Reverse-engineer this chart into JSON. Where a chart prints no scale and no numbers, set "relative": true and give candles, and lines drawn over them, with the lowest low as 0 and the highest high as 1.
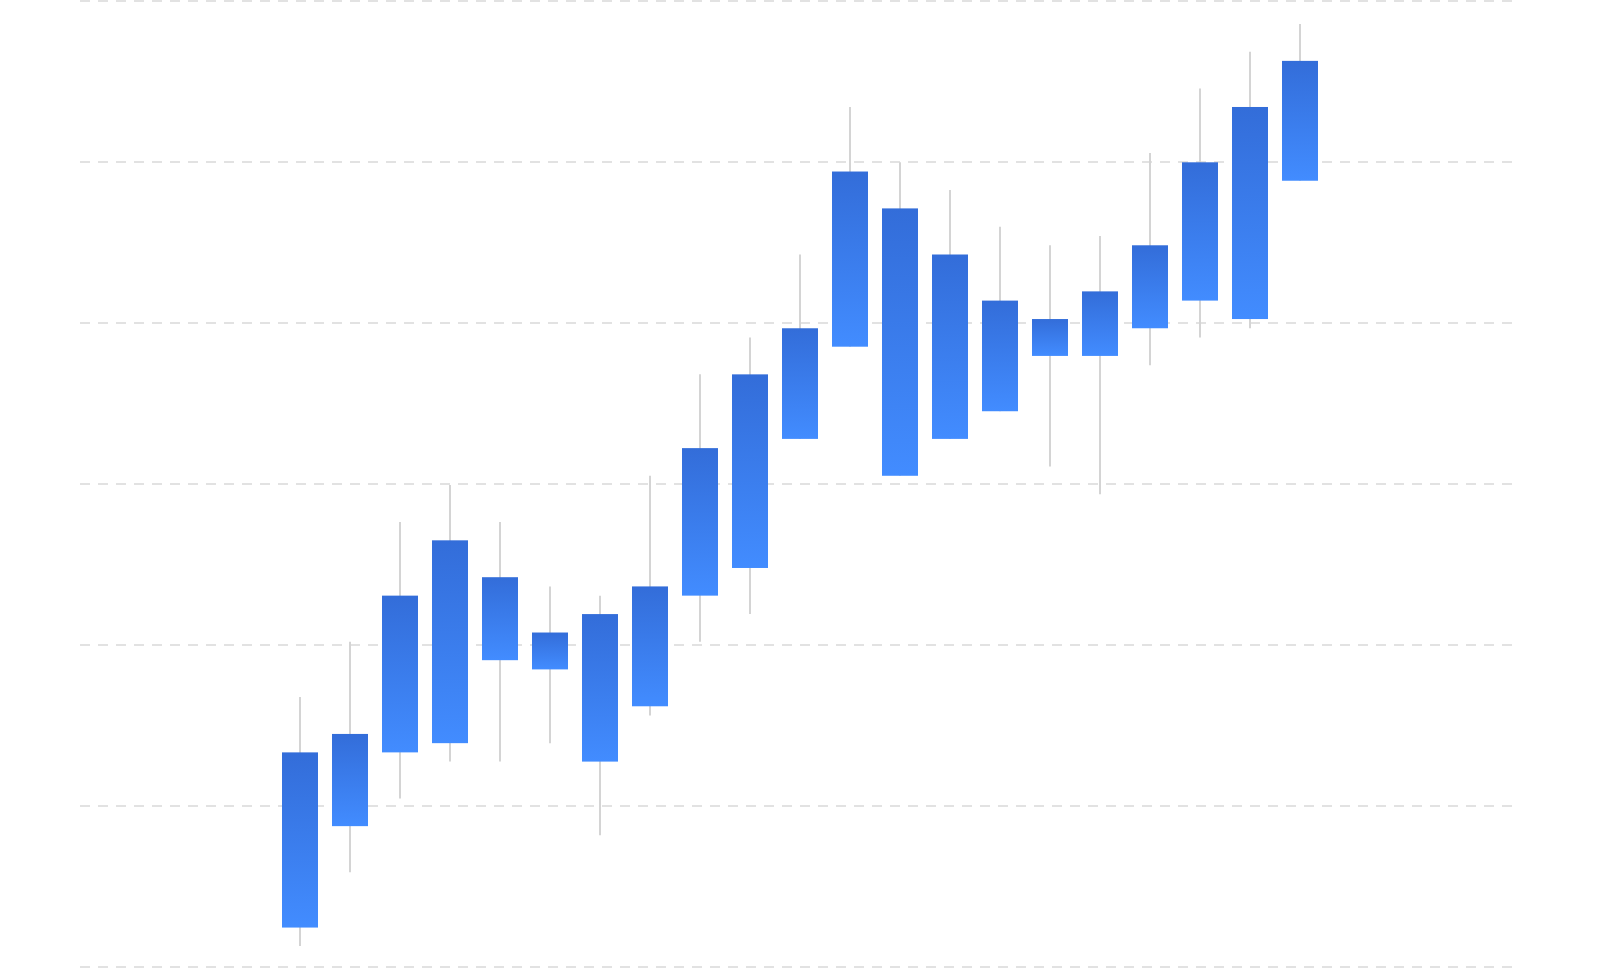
{
  "chart_data": {
    "type": "candlestick",
    "relative": true,
    "grid": "y",
    "color": "#3a7cf6",
    "categories": [
      null,
      null,
      null,
      null,
      null,
      null,
      null,
      null,
      null,
      null,
      null,
      null,
      null,
      null,
      null,
      null,
      null,
      null,
      null,
      null,
      null
    ],
    "ohlc": [
      [
        0.02,
        0.27,
        0,
        0.21
      ],
      [
        0.13,
        0.33,
        0.08,
        0.23
      ],
      [
        0.21,
        0.46,
        0.16,
        0.38
      ],
      [
        0.22,
        0.5,
        0.2,
        0.44
      ],
      [
        0.31,
        0.46,
        0.2,
        0.4
      ],
      [
        0.3,
        0.39,
        0.22,
        0.34
      ],
      [
        0.2,
        0.38,
        0.12,
        0.36
      ],
      [
        0.26,
        0.51,
        0.25,
        0.39
      ],
      [
        0.38,
        0.62,
        0.33,
        0.54
      ],
      [
        0.41,
        0.66,
        0.36,
        0.62
      ],
      [
        0.55,
        0.75,
        0.55,
        0.67
      ],
      [
        0.65,
        0.91,
        0.65,
        0.84
      ],
      [
        0.51,
        0.85,
        0.51,
        0.8
      ],
      [
        0.55,
        0.82,
        0.55,
        0.75
      ],
      [
        0.58,
        0.78,
        0.58,
        0.7
      ],
      [
        0.64,
        0.76,
        0.52,
        0.68
      ],
      [
        0.64,
        0.77,
        0.49,
        0.71
      ],
      [
        0.67,
        0.86,
        0.63,
        0.76
      ],
      [
        0.7,
        0.93,
        0.66,
        0.85
      ],
      [
        0.68,
        0.97,
        0.67,
        0.91
      ],
      [
        0.83,
        1,
        0.83,
        0.96
      ]
    ]
  }
}
